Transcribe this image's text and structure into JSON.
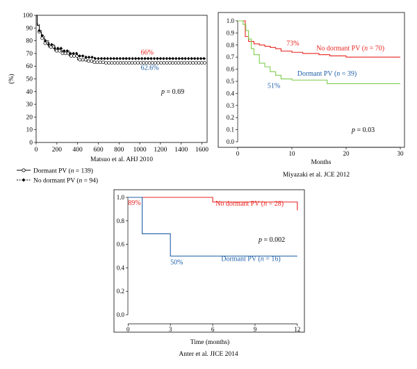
{
  "colors": {
    "red": "#e8231f",
    "blue": "#1f5fa8",
    "green": "#7ccc4a",
    "black": "#000000"
  },
  "chart_data": [
    {
      "type": "line",
      "ylabel": "(%)",
      "xlabel": "",
      "caption": "Matsuo et al. AHJ 2010",
      "xlim": [
        0,
        1650
      ],
      "ylim": [
        0,
        100
      ],
      "xticks": [
        0,
        200,
        400,
        600,
        800,
        1000,
        1200,
        1400,
        1600
      ],
      "yticks": [
        0,
        10,
        20,
        30,
        40,
        50,
        60,
        70,
        80,
        90,
        100
      ],
      "p_label": "p",
      "p_value": " = 0.69",
      "legend": [
        {
          "name": "Dormant PV",
          "n_label": "n",
          "n_value": " = 139",
          "marker": "open-circle"
        },
        {
          "name": "No dormant PV",
          "n_label": "n",
          "n_value": " = 94",
          "marker": "filled-diamond"
        }
      ],
      "series": [
        {
          "name": "Dormant PV",
          "color": "#000000",
          "x": [
            0,
            10,
            30,
            50,
            80,
            120,
            180,
            250,
            320,
            400,
            480,
            560,
            650,
            800,
            1000,
            1200,
            1400,
            1640
          ],
          "values": [
            100,
            92,
            87,
            82,
            78,
            75,
            72,
            70,
            68,
            65,
            64,
            63,
            62.6,
            62.6,
            62.6,
            62.6,
            62.6,
            62.6
          ]
        },
        {
          "name": "No dormant PV",
          "color": "#000000",
          "x": [
            0,
            10,
            30,
            50,
            80,
            120,
            180,
            250,
            320,
            400,
            480,
            560,
            650,
            800,
            1000,
            1200,
            1400,
            1640
          ],
          "values": [
            100,
            93,
            88,
            84,
            80,
            77,
            74,
            72,
            70,
            68,
            67,
            66,
            66,
            66,
            66,
            66,
            66,
            66
          ]
        }
      ],
      "annotations": [
        {
          "text": "66%",
          "color": "#e8231f",
          "x": 1010,
          "y": 69
        },
        {
          "text": "62.6%",
          "color": "#1f5fa8",
          "x": 1010,
          "y": 57
        }
      ]
    },
    {
      "type": "line",
      "xlabel": "Months",
      "ylabel": "",
      "caption": "Miyazaki et al. JCE 2012",
      "xlim": [
        0,
        30
      ],
      "ylim": [
        0,
        1
      ],
      "xticks": [
        0,
        10,
        20,
        30
      ],
      "yticks": [
        "0.0",
        "0.1",
        "0.2",
        "0.3",
        "0.4",
        "0.5",
        "0.6",
        "0.7",
        "0.8",
        "0.9",
        "1.0"
      ],
      "p_label": "p",
      "p_value": " = 0.03",
      "series": [
        {
          "name": "No dormant PV",
          "n_label": "n",
          "n_value": " = 70",
          "color": "#e8231f",
          "x": [
            0,
            1,
            1.4,
            2,
            3,
            4,
            5,
            6,
            7,
            8,
            10,
            12,
            15,
            17,
            20,
            30
          ],
          "values": [
            1.0,
            1.0,
            0.87,
            0.83,
            0.81,
            0.8,
            0.79,
            0.78,
            0.77,
            0.75,
            0.74,
            0.73,
            0.72,
            0.71,
            0.7,
            0.7
          ]
        },
        {
          "name": "Dormant PV",
          "n_label": "n",
          "n_value": " = 39",
          "color": "#7ccc4a",
          "x": [
            0,
            1,
            1.5,
            2,
            2.5,
            3,
            4,
            5,
            6,
            7,
            8,
            10,
            14,
            16.5,
            30
          ],
          "values": [
            1.0,
            0.97,
            0.92,
            0.85,
            0.77,
            0.72,
            0.65,
            0.62,
            0.58,
            0.55,
            0.52,
            0.51,
            0.51,
            0.48,
            0.48
          ]
        }
      ],
      "annotations": [
        {
          "text": "73%",
          "color": "#e8231f",
          "x": 9,
          "y": 0.795
        },
        {
          "text": "51%",
          "color": "#1f5fa8",
          "x": 5.5,
          "y": 0.445
        }
      ],
      "series_labels": [
        {
          "name": "No dormant PV",
          "n_label": "n",
          "n_value": " = 70",
          "color": "#e8231f",
          "x": 14.5,
          "y": 0.755
        },
        {
          "name": "Dormant PV",
          "n_label": "n",
          "n_value": " = 39",
          "color": "#1f5fa8",
          "x": 11,
          "y": 0.545
        }
      ]
    },
    {
      "type": "line",
      "xlabel": "Time (months)",
      "ylabel": "",
      "caption": "Anter et al. JICE 2014",
      "xlim": [
        -1,
        12.5
      ],
      "ylim": [
        0,
        1
      ],
      "xticks": [
        0,
        3,
        6,
        9,
        12
      ],
      "yticks": [
        "0.0",
        "0.2",
        "0.4",
        "0.6",
        "0.8",
        "1.0"
      ],
      "p_label": "p",
      "p_value": " = 0.002",
      "series": [
        {
          "name": "No dormant PV",
          "n_label": "n",
          "n_value": " = 28",
          "color": "#e8231f",
          "x": [
            0,
            6,
            6,
            12,
            12
          ],
          "values": [
            1.0,
            1.0,
            0.96,
            0.96,
            0.89
          ]
        },
        {
          "name": "Dormant PV",
          "n_label": "n",
          "n_value": " = 16",
          "color": "#1f5fa8",
          "x": [
            0,
            1,
            1,
            3,
            3,
            12
          ],
          "values": [
            1.0,
            1.0,
            0.69,
            0.69,
            0.5,
            0.5
          ]
        }
      ],
      "annotations": [
        {
          "text": "89%",
          "color": "#e8231f",
          "x": 0,
          "y": 0.935
        },
        {
          "text": "50%",
          "color": "#1f5fa8",
          "x": 3,
          "y": 0.43
        }
      ],
      "series_labels": [
        {
          "name": "No dormant PV",
          "n_label": "n",
          "n_value": " = 28",
          "color": "#e8231f",
          "x": 6.2,
          "y": 0.93
        },
        {
          "name": "Dormant PV",
          "n_label": "n",
          "n_value": " = 16",
          "color": "#1f5fa8",
          "x": 6.6,
          "y": 0.46
        }
      ]
    }
  ]
}
